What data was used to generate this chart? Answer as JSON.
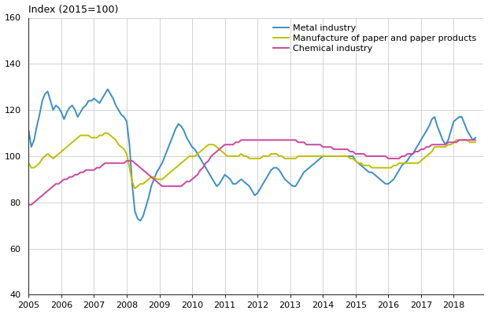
{
  "title": "Index (2015=100)",
  "ylim": [
    40,
    160
  ],
  "yticks": [
    40,
    60,
    80,
    100,
    120,
    140,
    160
  ],
  "xlim": [
    2005.0,
    2018.917
  ],
  "xticks": [
    2005,
    2006,
    2007,
    2008,
    2009,
    2010,
    2011,
    2012,
    2013,
    2014,
    2015,
    2016,
    2017,
    2018
  ],
  "colors": {
    "metal": "#3B8FC4",
    "paper": "#BFBF00",
    "chemical": "#C946A0"
  },
  "legend_labels": [
    "Metal industry",
    "Manufacture of paper and paper products",
    "Chemical industry"
  ],
  "metal": [
    111,
    104,
    107,
    113,
    118,
    124,
    127,
    128,
    124,
    120,
    122,
    121,
    119,
    116,
    119,
    121,
    122,
    120,
    117,
    119,
    121,
    122,
    124,
    124,
    125,
    124,
    123,
    125,
    127,
    129,
    127,
    125,
    122,
    120,
    118,
    117,
    115,
    105,
    88,
    76,
    73,
    72,
    74,
    78,
    82,
    87,
    90,
    93,
    95,
    97,
    100,
    103,
    106,
    109,
    112,
    114,
    113,
    111,
    108,
    106,
    104,
    103,
    101,
    99,
    97,
    95,
    93,
    91,
    89,
    87,
    88,
    90,
    92,
    91,
    90,
    88,
    88,
    89,
    90,
    89,
    88,
    87,
    85,
    83,
    84,
    86,
    88,
    90,
    92,
    94,
    95,
    95,
    94,
    92,
    90,
    89,
    88,
    87,
    87,
    89,
    91,
    93,
    94,
    95,
    96,
    97,
    98,
    99,
    100,
    100,
    100,
    100,
    100,
    100,
    100,
    100,
    100,
    100,
    100,
    100,
    98,
    97,
    96,
    95,
    94,
    93,
    93,
    92,
    91,
    90,
    89,
    88,
    88,
    89,
    90,
    92,
    94,
    96,
    97,
    98,
    100,
    101,
    103,
    105,
    107,
    109,
    111,
    113,
    116,
    117,
    113,
    110,
    107,
    105,
    107,
    111,
    115,
    116,
    117,
    117,
    114,
    111,
    109,
    107,
    108
  ],
  "paper": [
    97,
    95,
    95,
    96,
    97,
    99,
    100,
    101,
    100,
    99,
    100,
    101,
    102,
    103,
    104,
    105,
    106,
    107,
    108,
    109,
    109,
    109,
    109,
    108,
    108,
    108,
    109,
    109,
    110,
    110,
    109,
    108,
    107,
    105,
    104,
    103,
    101,
    95,
    89,
    86,
    87,
    88,
    88,
    89,
    90,
    91,
    91,
    90,
    90,
    90,
    91,
    92,
    93,
    94,
    95,
    96,
    97,
    98,
    99,
    100,
    100,
    100,
    101,
    102,
    103,
    104,
    105,
    105,
    105,
    104,
    103,
    102,
    101,
    100,
    100,
    100,
    100,
    100,
    101,
    100,
    100,
    99,
    99,
    99,
    99,
    99,
    100,
    100,
    100,
    101,
    101,
    101,
    100,
    100,
    99,
    99,
    99,
    99,
    99,
    100,
    100,
    100,
    100,
    100,
    100,
    100,
    100,
    100,
    100,
    100,
    100,
    100,
    100,
    100,
    100,
    100,
    100,
    100,
    99,
    99,
    98,
    97,
    97,
    96,
    96,
    96,
    95,
    95,
    95,
    95,
    95,
    95,
    95,
    95,
    96,
    96,
    97,
    97,
    97,
    97,
    97,
    97,
    97,
    97,
    98,
    99,
    100,
    101,
    102,
    104,
    104,
    104,
    104,
    104,
    105,
    105,
    106,
    107,
    107,
    107,
    107,
    107,
    106,
    106,
    106
  ],
  "chemical": [
    79,
    79,
    80,
    81,
    82,
    83,
    84,
    85,
    86,
    87,
    88,
    88,
    89,
    90,
    90,
    91,
    91,
    92,
    92,
    93,
    93,
    94,
    94,
    94,
    94,
    95,
    95,
    96,
    97,
    97,
    97,
    97,
    97,
    97,
    97,
    97,
    98,
    98,
    98,
    97,
    96,
    95,
    94,
    93,
    92,
    91,
    90,
    89,
    88,
    87,
    87,
    87,
    87,
    87,
    87,
    87,
    87,
    88,
    89,
    89,
    90,
    91,
    92,
    94,
    95,
    97,
    98,
    100,
    101,
    102,
    103,
    104,
    105,
    105,
    105,
    105,
    106,
    106,
    107,
    107,
    107,
    107,
    107,
    107,
    107,
    107,
    107,
    107,
    107,
    107,
    107,
    107,
    107,
    107,
    107,
    107,
    107,
    107,
    107,
    106,
    106,
    106,
    105,
    105,
    105,
    105,
    105,
    105,
    104,
    104,
    104,
    104,
    103,
    103,
    103,
    103,
    103,
    103,
    102,
    102,
    101,
    101,
    101,
    101,
    100,
    100,
    100,
    100,
    100,
    100,
    100,
    100,
    99,
    99,
    99,
    99,
    99,
    100,
    100,
    101,
    101,
    101,
    102,
    102,
    103,
    103,
    104,
    104,
    105,
    105,
    105,
    105,
    105,
    105,
    106,
    106,
    106,
    106,
    107,
    107,
    107,
    107,
    107,
    107,
    107
  ],
  "figsize": [
    6.2,
    4.0
  ],
  "dpi": 100,
  "grid_color": "#CCCCCC",
  "spine_color": "#333333",
  "tick_fontsize": 8,
  "title_fontsize": 9,
  "legend_fontsize": 8,
  "linewidth": 1.4
}
